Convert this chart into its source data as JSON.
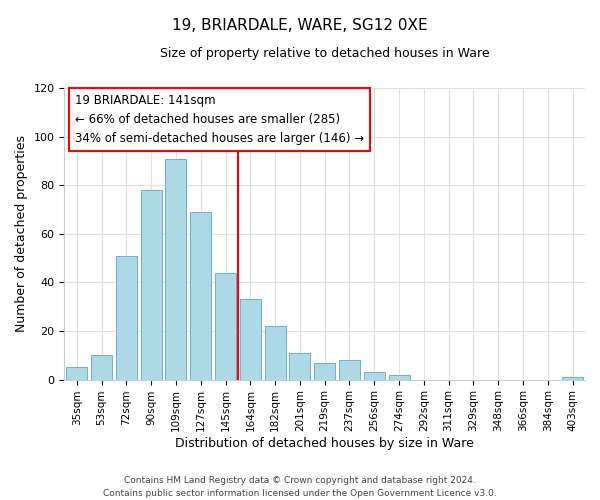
{
  "title": "19, BRIARDALE, WARE, SG12 0XE",
  "subtitle": "Size of property relative to detached houses in Ware",
  "xlabel": "Distribution of detached houses by size in Ware",
  "ylabel": "Number of detached properties",
  "bar_labels": [
    "35sqm",
    "53sqm",
    "72sqm",
    "90sqm",
    "109sqm",
    "127sqm",
    "145sqm",
    "164sqm",
    "182sqm",
    "201sqm",
    "219sqm",
    "237sqm",
    "256sqm",
    "274sqm",
    "292sqm",
    "311sqm",
    "329sqm",
    "348sqm",
    "366sqm",
    "384sqm",
    "403sqm"
  ],
  "bar_values": [
    5,
    10,
    51,
    78,
    91,
    69,
    44,
    33,
    22,
    11,
    7,
    8,
    3,
    2,
    0,
    0,
    0,
    0,
    0,
    0,
    1
  ],
  "bar_color": "#ADD8E6",
  "bar_edge_color": "#6baed6",
  "vline_x": 6.5,
  "vline_color": "red",
  "annotation_title": "19 BRIARDALE: 141sqm",
  "annotation_line1": "← 66% of detached houses are smaller (285)",
  "annotation_line2": "34% of semi-detached houses are larger (146) →",
  "annotation_box_color": "white",
  "annotation_box_edge": "red",
  "ylim": [
    0,
    120
  ],
  "yticks": [
    0,
    20,
    40,
    60,
    80,
    100,
    120
  ],
  "footer_line1": "Contains HM Land Registry data © Crown copyright and database right 2024.",
  "footer_line2": "Contains public sector information licensed under the Open Government Licence v3.0.",
  "bg_color": "white",
  "grid_color": "#e0e0e0"
}
